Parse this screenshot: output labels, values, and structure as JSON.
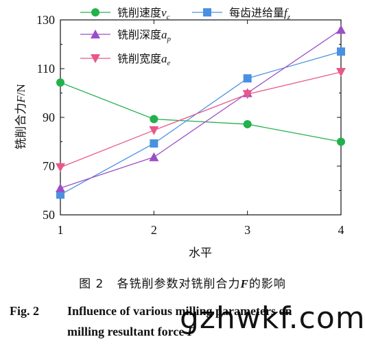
{
  "chart_data": {
    "type": "line",
    "categories": [
      "1",
      "2",
      "3",
      "4"
    ],
    "xlabel": "水平",
    "ylabel": "铣削合力F/N",
    "ylim": [
      50,
      130
    ],
    "yticks": [
      50,
      70,
      90,
      110,
      130
    ],
    "grid": false,
    "legend_position": "top",
    "series": [
      {
        "name": "铣削速度vc",
        "name_main": "铣削速度",
        "name_var": "v",
        "name_sub": "c",
        "color": "#22b14c",
        "marker": "circle",
        "values": [
          104.3,
          89.3,
          87.2,
          80.0
        ]
      },
      {
        "name": "每齿进给量fz",
        "name_main": "每齿进给量",
        "name_var": "f",
        "name_sub": "z",
        "color": "#4a90e2",
        "marker": "square",
        "values": [
          58.3,
          79.3,
          106.0,
          117.0
        ]
      },
      {
        "name": "铣削深度ap",
        "name_main": "铣削深度",
        "name_var": "a",
        "name_sub": "p",
        "color": "#9b4fc6",
        "marker": "triangle-up",
        "values": [
          61.0,
          73.7,
          100.0,
          126.0
        ]
      },
      {
        "name": "铣削宽度ae",
        "name_main": "铣削宽度",
        "name_var": "a",
        "name_sub": "e",
        "color": "#e8588a",
        "marker": "triangle-down",
        "values": [
          69.5,
          84.7,
          99.5,
          108.6
        ]
      }
    ]
  },
  "caption_cn": {
    "label": "图 2",
    "text_before": "各铣削参数对铣削合力",
    "var": "F",
    "text_after": "的影响"
  },
  "caption_en": {
    "label": "Fig. 2",
    "line1": "Influence of various milling parameters on",
    "line2_text": "milling resultant force ",
    "line2_var": "F"
  },
  "watermark": "gzhwkf.com"
}
